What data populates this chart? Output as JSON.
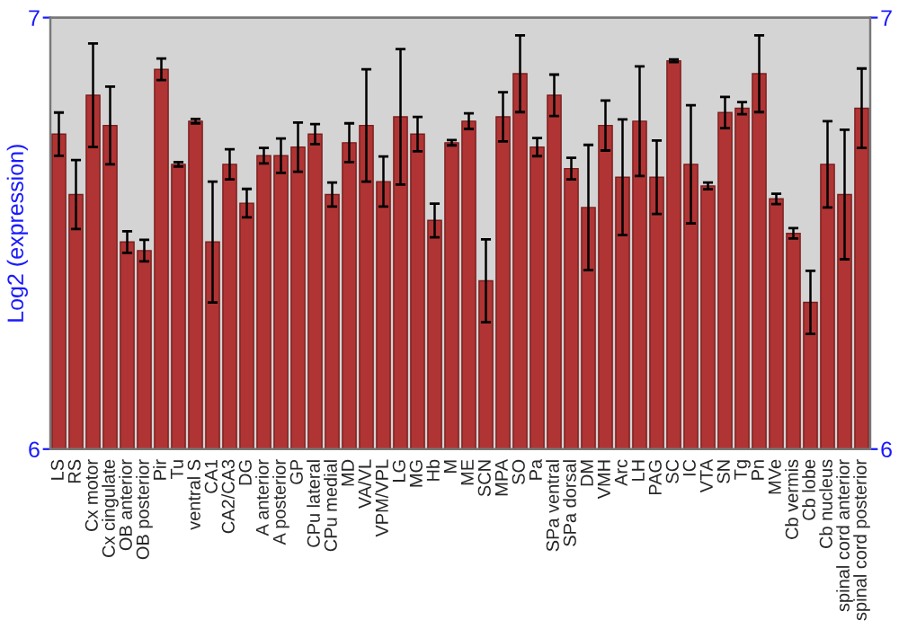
{
  "chart_data": {
    "type": "bar",
    "ylabel": "Log2 (expression)",
    "categories": [
      "LS",
      "RS",
      "Cx motor",
      "Cx cingulate",
      "OB anterior",
      "OB posterior",
      "Pir",
      "Tu",
      "ventral S",
      "CA1",
      "CA2/CA3",
      "DG",
      "A anterior",
      "A posterior",
      "GP",
      "CPu lateral",
      "CPu medial",
      "MD",
      "VA/VL",
      "VPM/VPL",
      "LG",
      "MG",
      "Hb",
      "M",
      "ME",
      "SCN",
      "MPA",
      "SO",
      "Pa",
      "SPa ventral",
      "SPa dorsal",
      "DM",
      "VMH",
      "Arc",
      "LH",
      "PAG",
      "SC",
      "IC",
      "VTA",
      "SN",
      "Tg",
      "Pn",
      "MVe",
      "Cb vermis",
      "Cb lobe",
      "Cb nucleus",
      "spinal cord anterior",
      "spinal cord posterior"
    ],
    "values": [
      6.73,
      6.59,
      6.82,
      6.75,
      6.48,
      6.46,
      6.88,
      6.66,
      6.76,
      6.48,
      6.66,
      6.57,
      6.68,
      6.68,
      6.7,
      6.73,
      6.59,
      6.71,
      6.75,
      6.62,
      6.77,
      6.73,
      6.53,
      6.71,
      6.76,
      6.39,
      6.77,
      6.87,
      6.7,
      6.82,
      6.65,
      6.56,
      6.75,
      6.63,
      6.76,
      6.63,
      6.9,
      6.66,
      6.61,
      6.78,
      6.79,
      6.87,
      6.58,
      6.5,
      6.34,
      6.66,
      6.59,
      6.79
    ],
    "errors": [
      0.05,
      0.08,
      0.12,
      0.09,
      0.025,
      0.025,
      0.025,
      0.005,
      0.005,
      0.14,
      0.035,
      0.033,
      0.018,
      0.04,
      0.057,
      0.023,
      0.028,
      0.045,
      0.13,
      0.058,
      0.157,
      0.04,
      0.039,
      0.006,
      0.018,
      0.096,
      0.057,
      0.089,
      0.021,
      0.048,
      0.025,
      0.145,
      0.058,
      0.134,
      0.127,
      0.085,
      0.003,
      0.137,
      0.008,
      0.036,
      0.014,
      0.089,
      0.012,
      0.012,
      0.073,
      0.1,
      0.15,
      0.092
    ],
    "color": "#b03434",
    "ylim": [
      6,
      7
    ],
    "yticks": [
      6,
      7
    ],
    "y2lim": [
      6,
      7
    ],
    "y2ticks": [
      6,
      7
    ],
    "grid": false
  }
}
